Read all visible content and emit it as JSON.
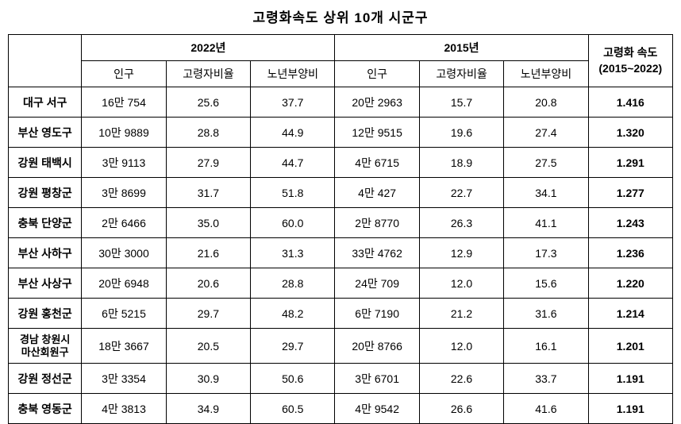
{
  "title": "고령화속도 상위 10개 시군구",
  "headers": {
    "year2022": "2022년",
    "year2015": "2015년",
    "pop": "인구",
    "elderRatio": "고령자비율",
    "oldDep": "노년부양비",
    "speed": "고령화 속도",
    "speedRange": "(2015~2022)"
  },
  "rows": [
    {
      "region": "대구 서구",
      "pop2022": "16만 754",
      "elder2022": "25.6",
      "dep2022": "37.7",
      "pop2015": "20만 2963",
      "elder2015": "15.7",
      "dep2015": "20.8",
      "speed": "1.416"
    },
    {
      "region": "부산 영도구",
      "pop2022": "10만 9889",
      "elder2022": "28.8",
      "dep2022": "44.9",
      "pop2015": "12만 9515",
      "elder2015": "19.6",
      "dep2015": "27.4",
      "speed": "1.320"
    },
    {
      "region": "강원 태백시",
      "pop2022": "3만 9113",
      "elder2022": "27.9",
      "dep2022": "44.7",
      "pop2015": "4만 6715",
      "elder2015": "18.9",
      "dep2015": "27.5",
      "speed": "1.291"
    },
    {
      "region": "강원 평창군",
      "pop2022": "3만 8699",
      "elder2022": "31.7",
      "dep2022": "51.8",
      "pop2015": "4만 427",
      "elder2015": "22.7",
      "dep2015": "34.1",
      "speed": "1.277"
    },
    {
      "region": "충북 단양군",
      "pop2022": "2만 6466",
      "elder2022": "35.0",
      "dep2022": "60.0",
      "pop2015": "2만 8770",
      "elder2015": "26.3",
      "dep2015": "41.1",
      "speed": "1.243"
    },
    {
      "region": "부산 사하구",
      "pop2022": "30만 3000",
      "elder2022": "21.6",
      "dep2022": "31.3",
      "pop2015": "33만 4762",
      "elder2015": "12.9",
      "dep2015": "17.3",
      "speed": "1.236"
    },
    {
      "region": "부산 사상구",
      "pop2022": "20만 6948",
      "elder2022": "20.6",
      "dep2022": "28.8",
      "pop2015": "24만 709",
      "elder2015": "12.0",
      "dep2015": "15.6",
      "speed": "1.220"
    },
    {
      "region": "강원 홍천군",
      "pop2022": "6만 5215",
      "elder2022": "29.7",
      "dep2022": "48.2",
      "pop2015": "6만 7190",
      "elder2015": "21.2",
      "dep2015": "31.6",
      "speed": "1.214"
    },
    {
      "region": "경남 창원시\n마산회원구",
      "pop2022": "18만 3667",
      "elder2022": "20.5",
      "dep2022": "29.7",
      "pop2015": "20만 8766",
      "elder2015": "12.0",
      "dep2015": "16.1",
      "speed": "1.201"
    },
    {
      "region": "강원 정선군",
      "pop2022": "3만 3354",
      "elder2022": "30.9",
      "dep2022": "50.6",
      "pop2015": "3만 6701",
      "elder2015": "22.6",
      "dep2015": "33.7",
      "speed": "1.191"
    },
    {
      "region": "충북 영동군",
      "pop2022": "4만 3813",
      "elder2022": "34.9",
      "dep2022": "60.5",
      "pop2015": "4만 9542",
      "elder2015": "26.6",
      "dep2015": "41.6",
      "speed": "1.191"
    }
  ]
}
